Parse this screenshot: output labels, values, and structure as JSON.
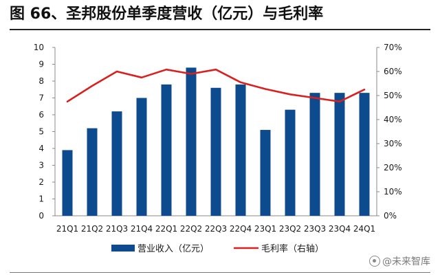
{
  "figure_title": "图 66、圣邦股份单季度营收（亿元）与毛利率",
  "watermark": "@未来智库",
  "colors": {
    "bar": "#0d4a8e",
    "line": "#d9201f",
    "axis": "#8a8a8a",
    "text": "#1a1a1a"
  },
  "chart_data": {
    "type": "bar+line",
    "title": "圣邦股份单季度营收（亿元）与毛利率",
    "categories": [
      "21Q1",
      "21Q2",
      "21Q3",
      "21Q4",
      "22Q1",
      "22Q2",
      "22Q3",
      "22Q4",
      "23Q1",
      "23Q2",
      "23Q3",
      "23Q4",
      "24Q1"
    ],
    "series": [
      {
        "name": "营业收入（亿元）",
        "type": "bar",
        "axis": "left",
        "values": [
          3.9,
          5.2,
          6.2,
          7.0,
          7.8,
          8.8,
          7.6,
          7.8,
          5.1,
          6.3,
          7.3,
          7.3,
          7.3
        ]
      },
      {
        "name": "毛利率（右轴）",
        "type": "line",
        "axis": "right",
        "values": [
          47.5,
          54.0,
          60.0,
          57.5,
          60.8,
          59.0,
          60.8,
          55.5,
          52.7,
          50.5,
          49.0,
          47.5,
          52.5
        ]
      }
    ],
    "y_left": {
      "min": 0,
      "max": 10,
      "ticks": [
        "0",
        "1",
        "2",
        "3",
        "4",
        "5",
        "6",
        "7",
        "8",
        "9",
        "10"
      ]
    },
    "y_right": {
      "min": 0,
      "max": 70,
      "ticks": [
        "0%",
        "10%",
        "20%",
        "30%",
        "40%",
        "50%",
        "60%",
        "70%"
      ]
    },
    "legend": {
      "position": "bottom",
      "items": [
        {
          "label": "营业收入（亿元）",
          "kind": "bar"
        },
        {
          "label": "毛利率（右轴）",
          "kind": "line"
        }
      ]
    },
    "grid": false
  }
}
